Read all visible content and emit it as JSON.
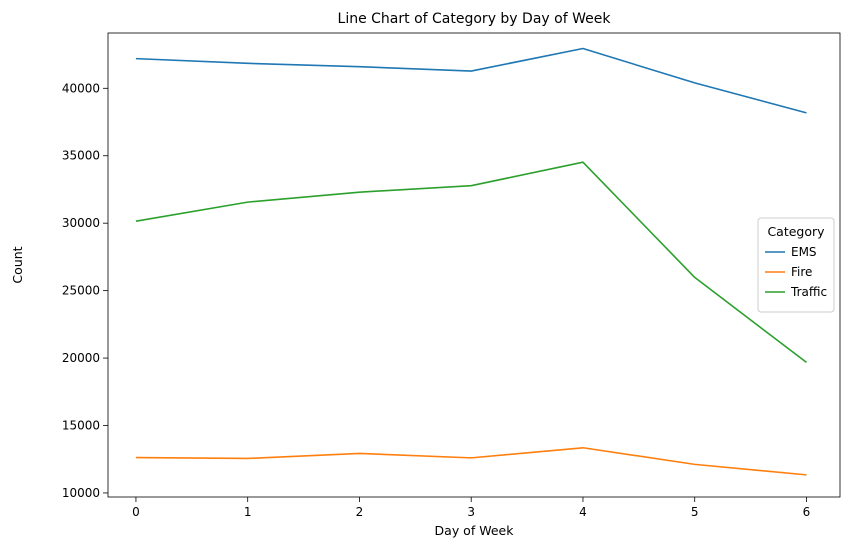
{
  "chart_data": {
    "type": "line",
    "title": "Line Chart of Category by Day of Week",
    "xlabel": "Day of Week",
    "ylabel": "Count",
    "x": [
      0,
      1,
      2,
      3,
      4,
      5,
      6
    ],
    "xlim": [
      -0.25,
      6.3
    ],
    "ylim": [
      9700,
      44100
    ],
    "xticks": [
      0,
      1,
      2,
      3,
      4,
      5,
      6
    ],
    "yticks": [
      10000,
      15000,
      20000,
      25000,
      30000,
      35000,
      40000
    ],
    "grid": false,
    "legend": {
      "title": "Category",
      "placement": "center-right"
    },
    "series": [
      {
        "name": "EMS",
        "color": "#1f77b4",
        "values": [
          42200,
          41850,
          41600,
          41280,
          42950,
          40400,
          38180
        ]
      },
      {
        "name": "Fire",
        "color": "#ff7f0e",
        "values": [
          12620,
          12560,
          12930,
          12600,
          13350,
          12120,
          11340
        ]
      },
      {
        "name": "Traffic",
        "color": "#2ca02c",
        "values": [
          30150,
          31560,
          32300,
          32780,
          34520,
          25980,
          19680
        ]
      }
    ]
  }
}
